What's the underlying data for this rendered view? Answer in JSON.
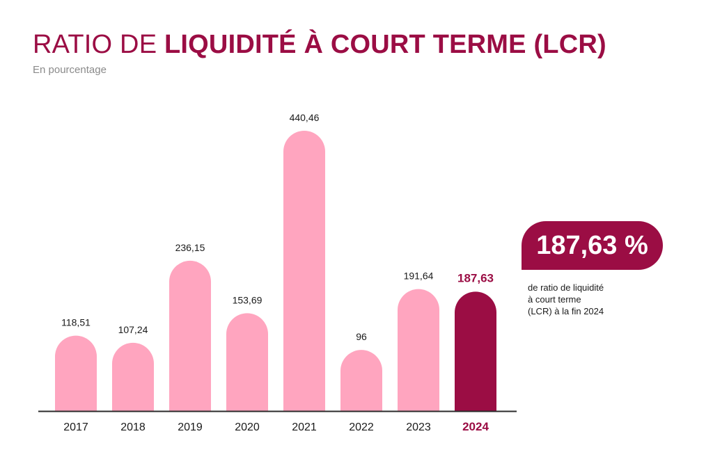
{
  "header": {
    "title_part1": "RATIO DE ",
    "title_part2": "LIQUIDITÉ À COURT TERME (LCR)",
    "subtitle": "En pourcentage"
  },
  "callout": {
    "value": "187,63 %",
    "text_lines": [
      "de ratio de liquidité",
      "à court terme",
      "(LCR) à la fin 2024"
    ]
  },
  "colors": {
    "accent": "#9b0d44",
    "bar": "#ffa5bf",
    "baseline": "#2a2a2a",
    "label": "#1a1a1a"
  },
  "chart_data": {
    "type": "bar",
    "categories": [
      "2017",
      "2018",
      "2019",
      "2020",
      "2021",
      "2022",
      "2023",
      "2024"
    ],
    "values": [
      118.51,
      107.24,
      236.15,
      153.69,
      440.46,
      96,
      191.64,
      187.63
    ],
    "value_labels": [
      "118,51",
      "107,24",
      "236,15",
      "153,69",
      "440,46",
      "96",
      "191,64",
      "187,63"
    ],
    "highlight_index": 7,
    "title": "",
    "xlabel": "",
    "ylabel": "",
    "ylim": [
      0,
      440.46
    ],
    "grid": false,
    "legend": "none"
  }
}
